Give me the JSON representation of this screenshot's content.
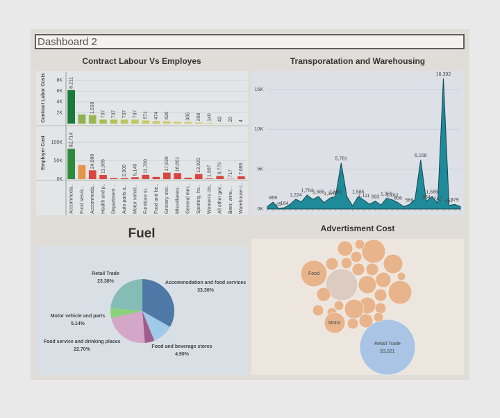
{
  "header": {
    "title": "Dashboard 2"
  },
  "chart_data": [
    {
      "type": "bar",
      "title": "Contract Labour Vs Employes",
      "y_label": "Contract Labor Costs",
      "categories": [
        "Accommoda..",
        "Food servic..",
        "Accommoda..",
        "Health and p..",
        "Department ..",
        "Auto parts a..",
        "Motor vehicl..",
        "Furniture st..",
        "Food and be..",
        "Grocery stor..",
        "Miscellaneo..",
        "General mer..",
        "Sporting, ho..",
        "Women's clo..",
        "All other gen..",
        "Beer, wine,..",
        "Warehouse c.."
      ],
      "values": [
        6211,
        1700,
        1539,
        737,
        737,
        737,
        737,
        571,
        474,
        426,
        330,
        305,
        208,
        140,
        43,
        20,
        4
      ],
      "value_labels": [
        "6,211",
        null,
        "1,539",
        "737",
        "737",
        "737",
        "737",
        "571",
        "474",
        "426",
        null,
        "305",
        "208",
        "140",
        "43",
        "20",
        "4"
      ],
      "colors": [
        "#1b7a3b",
        "#8db24e",
        "#9bb850",
        "#a7bd54",
        "#b3c258",
        "#bcc55c",
        "#c2c760",
        "#c7c862",
        "#cbc965",
        "#cfca68",
        "#d2cb6b",
        "#d5cc6e",
        "#d8cd71",
        "#dbce74",
        "#ddcf77",
        "#dfd07a",
        "#e1d17d"
      ],
      "ylim": [
        0,
        9000
      ],
      "yticks": [
        {
          "value": 2000,
          "label": "2K"
        },
        {
          "value": 4000,
          "label": "4K"
        },
        {
          "value": 6000,
          "label": "6K"
        },
        {
          "value": 8000,
          "label": "8K"
        }
      ]
    },
    {
      "type": "bar",
      "y_label": "Employer Cost",
      "values": [
        82714,
        38000,
        24088,
        11305,
        3000,
        2905,
        5140,
        11700,
        6000,
        17639,
        16601,
        4000,
        13920,
        1907,
        8779,
        717,
        7686
      ],
      "value_labels": [
        "82,714",
        null,
        "24,088",
        "11,305",
        null,
        "2,905",
        "5,140",
        "11,700",
        null,
        "17,639",
        "16,601",
        null,
        "13,920",
        "1,907",
        "8,779",
        "717",
        "7,686"
      ],
      "colors": [
        "#2e8b3e",
        "#e8934a",
        "#d9453f",
        "#d9453f",
        "#d9453f",
        "#d9453f",
        "#d9453f",
        "#d9453f",
        "#d9453f",
        "#d9453f",
        "#d9453f",
        "#d9453f",
        "#d9453f",
        "#d9453f",
        "#d9453f",
        "#d9453f",
        "#d9453f"
      ],
      "ylim": [
        0,
        140000
      ],
      "yticks": [
        {
          "value": 0,
          "label": "0K"
        },
        {
          "value": 50000,
          "label": "50K"
        },
        {
          "value": 100000,
          "label": "100K"
        }
      ]
    },
    {
      "type": "area",
      "title": "Transporatation and Warehousing",
      "color": "#1f8a99",
      "values": [
        300,
        869,
        45,
        164,
        600,
        1224,
        900,
        1764,
        1200,
        1585,
        800,
        1370,
        1585,
        5781,
        1585,
        400,
        1585,
        1111,
        600,
        993,
        500,
        1359,
        1162,
        806,
        300,
        569,
        1200,
        6158,
        964,
        1585,
        742,
        16392,
        457,
        579,
        300
      ],
      "value_labels": [
        null,
        "869",
        "45",
        "164",
        null,
        "1,224",
        null,
        "1,764",
        null,
        "1,585",
        null,
        "1,370",
        "1,585",
        "5,781",
        null,
        null,
        "1,585",
        "1,111",
        null,
        "993",
        null,
        "1,359",
        "1,162",
        "806",
        null,
        "569",
        null,
        "6,158",
        "964",
        "1,585",
        "742",
        "16,392",
        "457",
        "579",
        null
      ],
      "ylim": [
        0,
        17000
      ],
      "yticks": [
        {
          "value": 0,
          "label": "0K"
        },
        {
          "value": 5000,
          "label": "5K"
        },
        {
          "value": 10000,
          "label": "10K"
        },
        {
          "value": 15000,
          "label": "15K"
        }
      ]
    },
    {
      "type": "pie",
      "title": "Fuel",
      "categories": [
        "Accommodation and food services",
        null,
        "Food and beverage stores",
        "Food service and drinking places",
        "Motor vehicle and parts",
        "Retail Trade"
      ],
      "values": [
        33.3,
        10.58,
        4.9,
        22.7,
        5.14,
        23.38
      ],
      "value_labels": [
        "33.30%",
        null,
        "4.90%",
        "22.70%",
        "5.14%",
        "23.38%"
      ],
      "colors": [
        "#4e79a7",
        "#a0cbe8",
        "#a05d8b",
        "#d4a6c8",
        "#8cd17d",
        "#86bcb6"
      ]
    },
    {
      "type": "bubble",
      "title": "Advertisment Cost",
      "categories": [
        "Retail Trade",
        "Food",
        null,
        null,
        null,
        null,
        null,
        null,
        null,
        null,
        null,
        null,
        null,
        null,
        null,
        null,
        null,
        null,
        null,
        null,
        null,
        null,
        null,
        null,
        null,
        null,
        "Motor",
        null
      ],
      "values": [
        53021,
        11962,
        17531,
        9577,
        6495,
        9577,
        4010,
        1624,
        2121,
        2684,
        2121,
        2684,
        2684,
        4010,
        5600,
        2684,
        4772,
        6495,
        1624,
        3314,
        2121,
        1624,
        2121,
        2121,
        3314,
        1624,
        7456,
        1193
      ],
      "value_labels": [
        "53,021",
        null,
        null,
        null,
        null,
        null,
        null,
        null,
        null,
        null,
        null,
        null,
        null,
        null,
        null,
        null,
        null,
        null,
        null,
        null,
        null,
        null,
        null,
        null,
        null,
        null,
        null,
        null
      ],
      "colors": [
        "#a9c4e4",
        "#e8b48c",
        "#dccbc0",
        "#e8b48c",
        "#e8b48c",
        "#e8b48c",
        "#e8b48c",
        "#e8b48c",
        "#e8b48c",
        "#e8b48c",
        "#e8b48c",
        "#e8b48c",
        "#e8b48c",
        "#e8b48c",
        "#e8b48c",
        "#e8b48c",
        "#e8b48c",
        "#e8b48c",
        "#e8b48c",
        "#e8b48c",
        "#e8b48c",
        "#e8b48c",
        "#e8b48c",
        "#e8b48c",
        "#e8b48c",
        "#e8b48c",
        "#e8b48c",
        "#e8b48c"
      ]
    }
  ]
}
